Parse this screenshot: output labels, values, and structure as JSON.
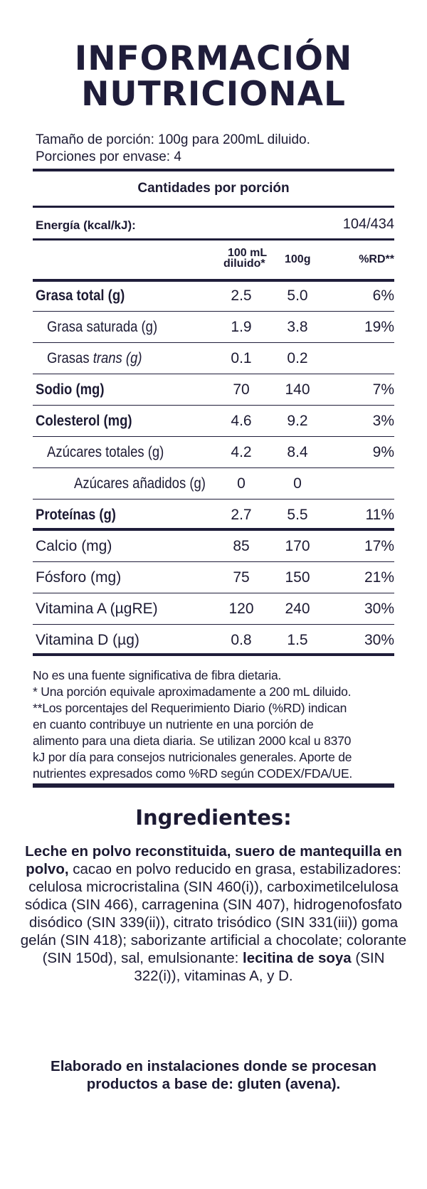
{
  "title": {
    "line1": "INFORMACIÓN",
    "line2": "NUTRICIONAL"
  },
  "serving": {
    "size": "Tamaño de porción: 100g para 200mL diluido.",
    "per_container": "Porciones por envase: 4"
  },
  "amounts_header": "Cantidades por porción",
  "energy": {
    "label": "Energía (kcal/kJ):",
    "value": "104/434"
  },
  "columns": {
    "diluted": "100 mL diluido*",
    "diluted_l1": "100 mL",
    "diluted_l2": "diluido*",
    "grams": "100g",
    "rd": "%RD**"
  },
  "rows": [
    {
      "label": "Grasa total (g)",
      "bold": true,
      "indent": 0,
      "diluted": "2.5",
      "grams": "5.0",
      "rd": "6%"
    },
    {
      "label": "Grasa saturada (g)",
      "bold": false,
      "indent": 1,
      "diluted": "1.9",
      "grams": "3.8",
      "rd": "19%"
    },
    {
      "label_pre": "Grasas ",
      "label_italic": "trans (g)",
      "label": "Grasas trans (g)",
      "bold": false,
      "indent": 1,
      "diluted": "0.1",
      "grams": "0.2",
      "rd": ""
    },
    {
      "label": "Sodio (mg)",
      "bold": true,
      "indent": 0,
      "diluted": "70",
      "grams": "140",
      "rd": "7%"
    },
    {
      "label": "Colesterol (mg)",
      "bold": true,
      "indent": 0,
      "diluted": "4.6",
      "grams": "9.2",
      "rd": "3%"
    },
    {
      "label": "Azúcares totales (g)",
      "bold": false,
      "indent": 1,
      "diluted": "4.2",
      "grams": "8.4",
      "rd": "9%"
    },
    {
      "label": "Azúcares añadidos (g)",
      "bold": false,
      "indent": 2,
      "diluted": "0",
      "grams": "0",
      "rd": ""
    },
    {
      "label": "Proteínas (g)",
      "bold": true,
      "indent": 0,
      "diluted": "2.7",
      "grams": "5.5",
      "rd": "11%"
    },
    {
      "label": "Calcio (mg)",
      "bold": false,
      "indent": 0,
      "diluted": "85",
      "grams": "170",
      "rd": "17%"
    },
    {
      "label": "Fósforo (mg)",
      "bold": false,
      "indent": 0,
      "diluted": "75",
      "grams": "150",
      "rd": "21%"
    },
    {
      "label": "Vitamina A (µgRE)",
      "bold": false,
      "indent": 0,
      "diluted": "120",
      "grams": "240",
      "rd": "30%"
    },
    {
      "label": "Vitamina D (µg)",
      "bold": false,
      "indent": 0,
      "diluted": "0.8",
      "grams": "1.5",
      "rd": "30%"
    }
  ],
  "notes": [
    "No es una fuente significativa de fibra dietaria.",
    "* Una porción equivale aproximadamente a 200 mL diluido.",
    "**Los porcentajes del Requerimiento Diario (%RD) indican",
    "en cuanto contribuye un nutriente en una porción de",
    "alimento para una dieta diaria. Se utilizan 2000 kcal u 8370",
    "kJ por día para consejos nutricionales generales. Aporte de",
    "nutrientes expresados como %RD según CODEX/FDA/UE."
  ],
  "ingredients": {
    "title": "Ingredientes:",
    "bold_intro": "Leche en polvo reconstituida, suero de mantequilla en polvo,",
    "text_main": " cacao en polvo reducido en grasa, estabilizadores: celulosa microcristalina (SIN 460(i)), carboximetilcelulosa sódica (SIN 466), carragenina (SIN 407), hidrogenofosfato disódico (SIN 339(ii)), citrato trisódico (SIN 331(iii)) goma gelán (SIN 418); saborizante artificial a chocolate; colorante (SIN 150d), sal, emulsionante: ",
    "bold_lecithin": "lecitina de soya",
    "text_end": " (SIN 322(i)), vitaminas A, y D."
  },
  "allergen_note": "Elaborado en instalaciones donde se procesan productos a base de: gluten (avena).",
  "colors": {
    "ink": "#1f1d3a",
    "background": "#ffffff"
  }
}
